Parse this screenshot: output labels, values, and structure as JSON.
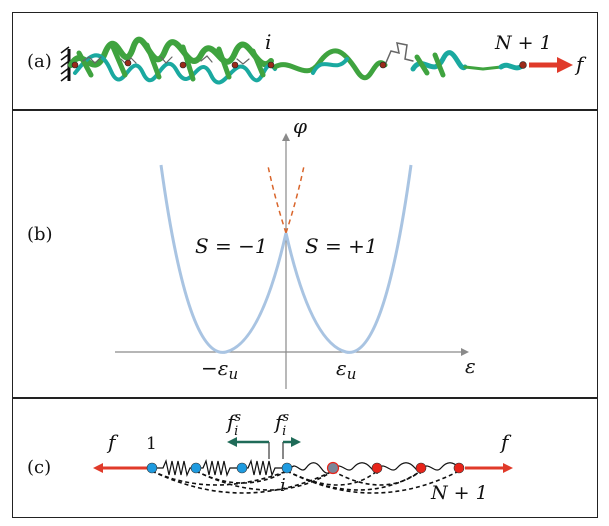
{
  "panels": {
    "a": {
      "label": "(a)",
      "node_label": "i",
      "end_label": "N + 1",
      "force_label": "f"
    },
    "b": {
      "label": "(b)",
      "y_axis_label": "φ",
      "x_axis_label": "ε",
      "left_well_label": "S = −1",
      "right_well_label": "S = +1",
      "left_min_label": "−ε",
      "left_min_sub": "u",
      "right_min_label": "ε",
      "right_min_sub": "u"
    },
    "c": {
      "label": "(c)",
      "left_force": "f",
      "right_force": "f",
      "first_node": "1",
      "node_i": "i",
      "last_node": "N + 1",
      "spin_force_left": "f",
      "spin_force_left_sup": "s",
      "spin_force_left_sub": "i",
      "spin_force_right": "f",
      "spin_force_right_sup": "s",
      "spin_force_right_sub": "i"
    }
  },
  "colors": {
    "curve": "#a9c4e2",
    "dashed": "#d9652b",
    "axis": "#8a8a8a",
    "arrow_red": "#e03a2a",
    "node_blue": "#1e9be0",
    "node_red": "#e8241a",
    "node_gray": "#7b8598",
    "teal_arrow": "#1f6b58",
    "protein_green": "#3fa33f",
    "protein_teal": "#1aa9a0"
  },
  "icons": {
    "wall": "hatched-wall-icon",
    "protein": "protein-ribbon-icon"
  }
}
